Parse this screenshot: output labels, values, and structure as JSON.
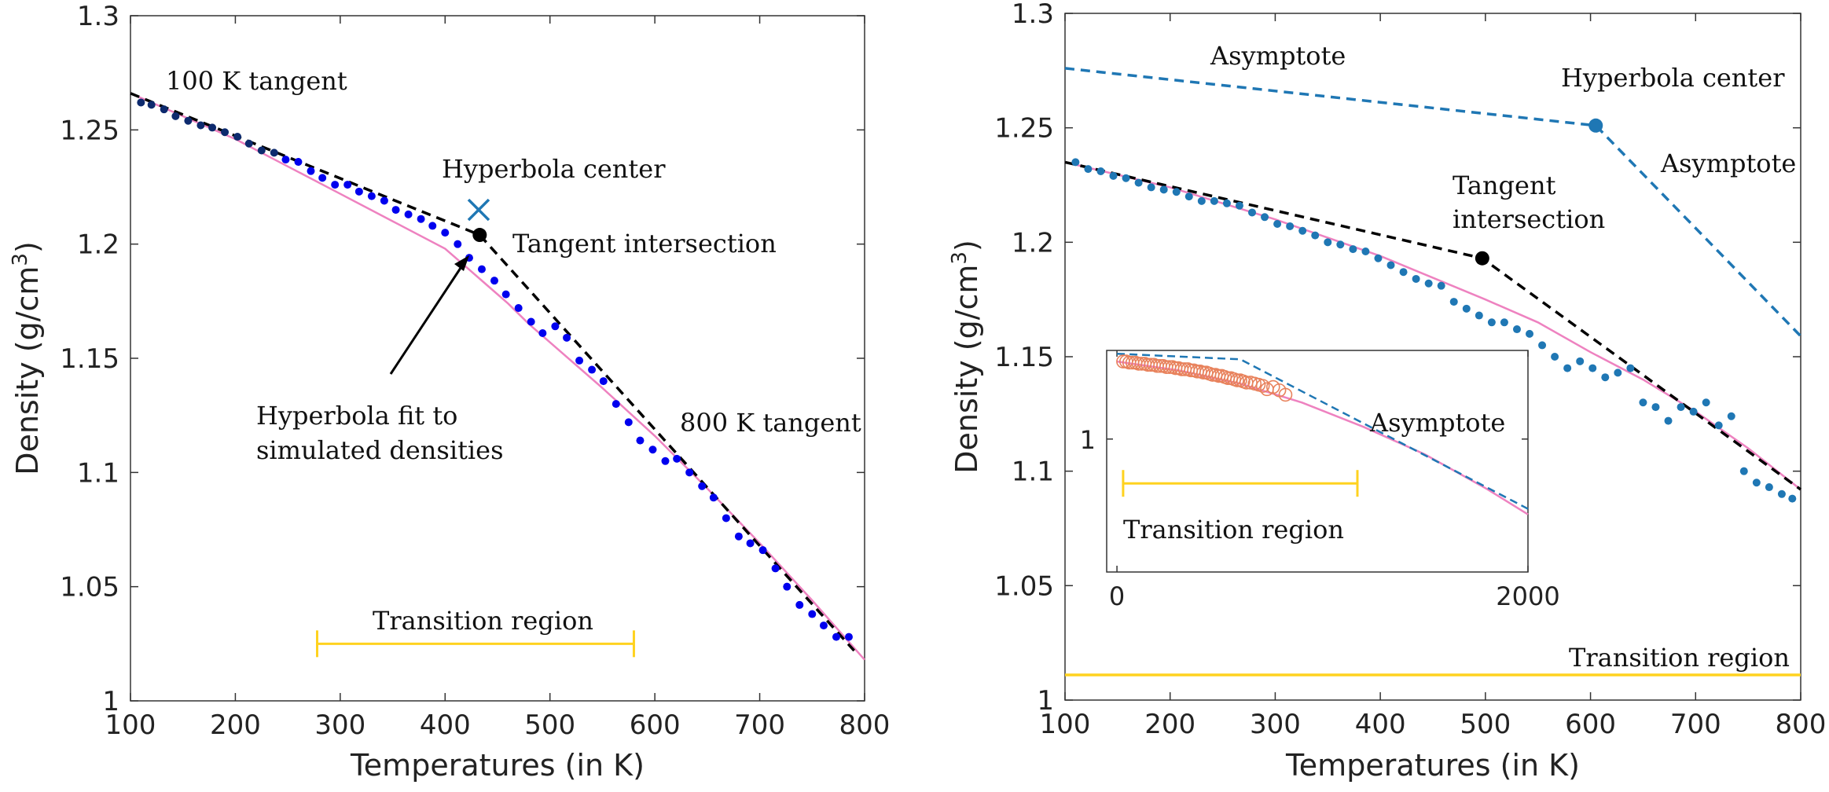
{
  "chart_data": [
    {
      "type": "scatter",
      "panel": "left",
      "xlabel": "Temperatures (in K)",
      "ylabel_main": "Density (g/cm",
      "ylabel_sup": "3",
      "ylabel_end": ")",
      "xlim": [
        100,
        800
      ],
      "ylim": [
        1.0,
        1.3
      ],
      "xticks": [
        "100",
        "200",
        "300",
        "400",
        "500",
        "600",
        "700",
        "800"
      ],
      "yticks": [
        "1",
        "1.05",
        "1.1",
        "1.15",
        "1.2",
        "1.25",
        "1.3"
      ],
      "colors": {
        "points": "#0000ee",
        "fit": "#ee82c0",
        "tangent": "#000000",
        "center": "#1f77b4",
        "transition": "#ffd21f"
      },
      "points": {
        "x": [
          110,
          120,
          132,
          143,
          155,
          167,
          178,
          190,
          202,
          213,
          225,
          237,
          248,
          260,
          272,
          283,
          295,
          307,
          318,
          330,
          342,
          353,
          365,
          377,
          388,
          400,
          412,
          423,
          435,
          447,
          458,
          470,
          482,
          493,
          505,
          516,
          528,
          540,
          551,
          563,
          575,
          586,
          598,
          610,
          621,
          633,
          645,
          656,
          668,
          680,
          691,
          703,
          715,
          726,
          738,
          750,
          761,
          773,
          785
        ],
        "y": [
          1.262,
          1.261,
          1.259,
          1.256,
          1.254,
          1.252,
          1.251,
          1.249,
          1.247,
          1.244,
          1.241,
          1.24,
          1.237,
          1.236,
          1.232,
          1.229,
          1.226,
          1.226,
          1.223,
          1.221,
          1.219,
          1.215,
          1.213,
          1.211,
          1.208,
          1.205,
          1.2,
          1.194,
          1.189,
          1.184,
          1.178,
          1.172,
          1.166,
          1.161,
          1.164,
          1.159,
          1.149,
          1.145,
          1.14,
          1.13,
          1.122,
          1.114,
          1.11,
          1.105,
          1.106,
          1.1,
          1.094,
          1.089,
          1.08,
          1.072,
          1.069,
          1.066,
          1.058,
          1.05,
          1.042,
          1.038,
          1.033,
          1.028,
          1.028
        ]
      },
      "fit": {
        "x": [
          100,
          150,
          200,
          250,
          300,
          350,
          400,
          420,
          440,
          460,
          480,
          500,
          550,
          600,
          650,
          700,
          750,
          800
        ],
        "y": [
          1.266,
          1.256,
          1.246,
          1.234,
          1.222,
          1.21,
          1.198,
          1.19,
          1.182,
          1.174,
          1.165,
          1.157,
          1.137,
          1.116,
          1.093,
          1.069,
          1.044,
          1.018
        ]
      },
      "tangent": {
        "x": [
          100,
          433,
          790
        ],
        "y": [
          1.266,
          1.204,
          1.022
        ]
      },
      "hyperbola_center": {
        "x": 432,
        "y": 1.215
      },
      "tangent_intersection": {
        "x": 433,
        "y": 1.204
      },
      "transition_region": {
        "x": [
          278,
          580
        ],
        "y": 1.025
      },
      "annotations": {
        "tangent_100": "100 K tangent",
        "hyperbola_center": "Hyperbola center",
        "tangent_intersection": "Tangent intersection",
        "fit_line1": "Hyperbola fit to",
        "fit_line2": "simulated densities",
        "tangent_800": "800 K tangent",
        "transition": "Transition region"
      }
    },
    {
      "type": "scatter",
      "panel": "right",
      "xlabel": "Temperatures (in K)",
      "ylabel_main": "Density (g/cm",
      "ylabel_sup": "3",
      "ylabel_end": ")",
      "xlim": [
        100,
        800
      ],
      "ylim": [
        1.0,
        1.3
      ],
      "xticks": [
        "100",
        "200",
        "300",
        "400",
        "500",
        "600",
        "700",
        "800"
      ],
      "yticks": [
        "1",
        "1.05",
        "1.1",
        "1.15",
        "1.2",
        "1.25",
        "1.3"
      ],
      "colors": {
        "points": "#1f77b4",
        "fit": "#ee82c0",
        "tangent": "#000000",
        "asymptote": "#1f77b4",
        "transition": "#ffd21f"
      },
      "points": {
        "x": [
          110,
          122,
          134,
          146,
          158,
          170,
          182,
          194,
          206,
          218,
          230,
          242,
          254,
          266,
          278,
          290,
          302,
          314,
          326,
          338,
          350,
          362,
          374,
          386,
          398,
          410,
          422,
          434,
          446,
          458,
          470,
          482,
          494,
          506,
          518,
          530,
          542,
          554,
          566,
          578,
          590,
          602,
          614,
          626,
          638,
          650,
          662,
          674,
          686,
          698,
          710,
          722,
          734,
          746,
          758,
          770,
          782,
          792
        ],
        "y": [
          1.235,
          1.232,
          1.231,
          1.229,
          1.228,
          1.226,
          1.224,
          1.223,
          1.222,
          1.22,
          1.218,
          1.218,
          1.217,
          1.216,
          1.213,
          1.211,
          1.208,
          1.207,
          1.205,
          1.203,
          1.2,
          1.199,
          1.197,
          1.196,
          1.193,
          1.19,
          1.187,
          1.184,
          1.182,
          1.181,
          1.174,
          1.171,
          1.168,
          1.165,
          1.165,
          1.162,
          1.16,
          1.155,
          1.15,
          1.145,
          1.148,
          1.145,
          1.141,
          1.143,
          1.145,
          1.13,
          1.128,
          1.122,
          1.128,
          1.126,
          1.13,
          1.12,
          1.124,
          1.1,
          1.095,
          1.093,
          1.09,
          1.088
        ]
      },
      "fit": {
        "x": [
          100,
          200,
          300,
          400,
          500,
          550,
          600,
          650,
          700,
          750,
          800
        ],
        "y": [
          1.235,
          1.224,
          1.21,
          1.194,
          1.175,
          1.165,
          1.152,
          1.14,
          1.126,
          1.11,
          1.092
        ]
      },
      "tangent": {
        "x": [
          100,
          497,
          800
        ],
        "y": [
          1.235,
          1.193,
          1.092
        ]
      },
      "asymptote": {
        "x": [
          100,
          605,
          800
        ],
        "y": [
          1.276,
          1.251,
          1.159
        ]
      },
      "hyperbola_center": {
        "x": 605,
        "y": 1.251
      },
      "tangent_intersection": {
        "x": 497,
        "y": 1.193
      },
      "transition_region": {
        "x": [
          100,
          800
        ],
        "y": 1.011
      },
      "annotations": {
        "asymptote_top": "Asymptote",
        "hyperbola_center": "Hyperbola center",
        "asymptote_right": "Asymptote",
        "tangent_line1": "Tangent",
        "tangent_line2": "intersection",
        "transition": "Transition  region"
      },
      "inset": {
        "xlim": [
          -50,
          2000
        ],
        "ylim": [
          0.88,
          1.08
        ],
        "xticks": [
          "0",
          "2000"
        ],
        "yticks": [
          "1"
        ],
        "colors": {
          "points": "#e8825c",
          "fit": "#ee82c0",
          "asymptote": "#1f77b4",
          "transition": "#ffd21f"
        },
        "points": {
          "x": [
            30,
            45,
            60,
            75,
            90,
            105,
            120,
            135,
            150,
            165,
            180,
            195,
            210,
            225,
            240,
            255,
            270,
            285,
            300,
            315,
            330,
            345,
            360,
            375,
            390,
            405,
            420,
            435,
            450,
            465,
            480,
            495,
            510,
            525,
            540,
            555,
            570,
            585,
            600,
            615,
            630,
            650,
            670,
            690,
            710,
            730,
            760,
            790,
            820
          ],
          "y": [
            1.07,
            1.07,
            1.069,
            1.069,
            1.069,
            1.068,
            1.068,
            1.068,
            1.067,
            1.067,
            1.067,
            1.066,
            1.066,
            1.066,
            1.065,
            1.065,
            1.065,
            1.064,
            1.064,
            1.063,
            1.063,
            1.063,
            1.062,
            1.062,
            1.061,
            1.061,
            1.06,
            1.06,
            1.059,
            1.058,
            1.058,
            1.057,
            1.057,
            1.056,
            1.055,
            1.055,
            1.054,
            1.053,
            1.053,
            1.052,
            1.051,
            1.051,
            1.05,
            1.049,
            1.048,
            1.045,
            1.047,
            1.044,
            1.04
          ]
        },
        "fit": {
          "x": [
            0,
            300,
            600,
            900,
            1200,
            1500,
            1800,
            2000
          ],
          "y": [
            1.07,
            1.062,
            1.05,
            1.033,
            1.011,
            0.986,
            0.955,
            0.932
          ]
        },
        "asymptote": {
          "x": [
            0,
            600,
            2000
          ],
          "y": [
            1.077,
            1.072,
            0.937
          ]
        },
        "transition_region": {
          "x": [
            30,
            1170
          ],
          "y": 0.96
        },
        "annotations": {
          "asymptote": "Asymptote",
          "transition": "Transition  region"
        }
      }
    }
  ]
}
